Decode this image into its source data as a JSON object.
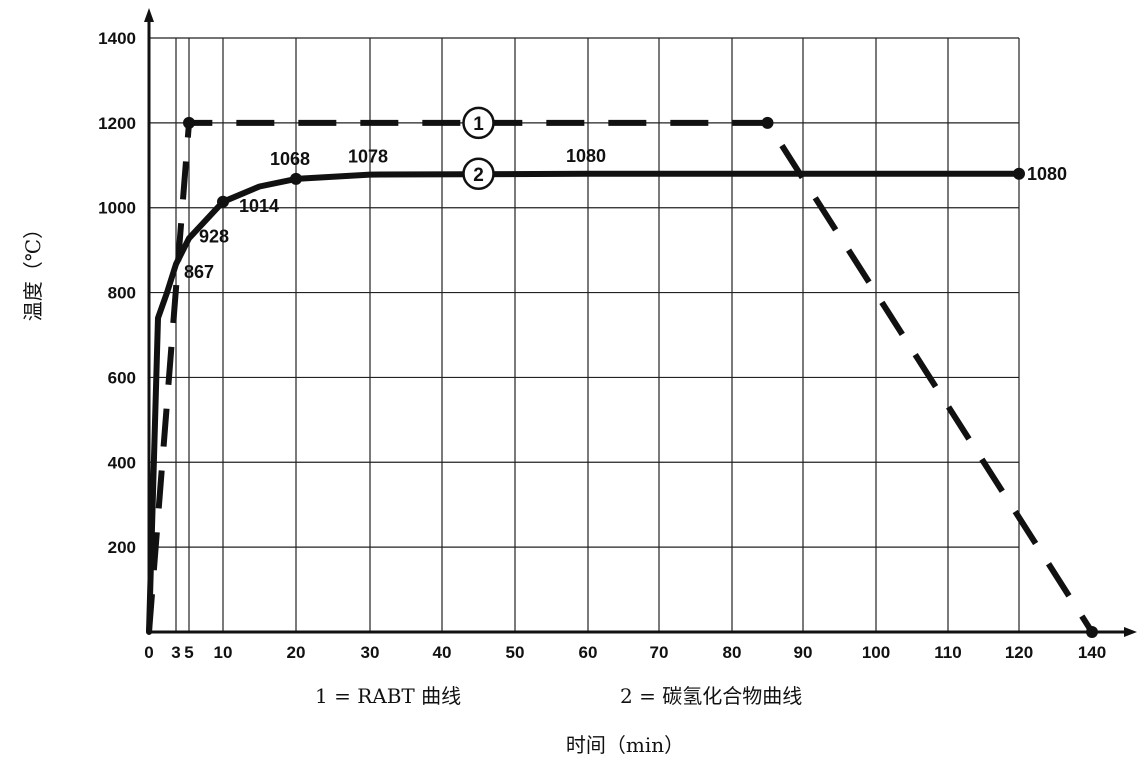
{
  "chart_data": {
    "type": "line",
    "ylabel": "温度（℃）",
    "xlabel": "时间（min）",
    "xlim": [
      0,
      140
    ],
    "ylim": [
      0,
      1400
    ],
    "grid": true,
    "x_ticks": [
      {
        "value": 0,
        "label": "0"
      },
      {
        "value": 3,
        "label": "3"
      },
      {
        "value": 5,
        "label": "5"
      },
      {
        "value": 10,
        "label": "10"
      },
      {
        "value": 20,
        "label": "20"
      },
      {
        "value": 30,
        "label": "30"
      },
      {
        "value": 40,
        "label": "40"
      },
      {
        "value": 50,
        "label": "50"
      },
      {
        "value": 60,
        "label": "60"
      },
      {
        "value": 70,
        "label": "70"
      },
      {
        "value": 80,
        "label": "80"
      },
      {
        "value": 90,
        "label": "90"
      },
      {
        "value": 100,
        "label": "100"
      },
      {
        "value": 110,
        "label": "110"
      },
      {
        "value": 120,
        "label": "120"
      },
      {
        "value": 140,
        "label": "140"
      }
    ],
    "y_ticks": [
      {
        "value": 200,
        "label": "200"
      },
      {
        "value": 400,
        "label": "400"
      },
      {
        "value": 600,
        "label": "600"
      },
      {
        "value": 800,
        "label": "800"
      },
      {
        "value": 1000,
        "label": "1000"
      },
      {
        "value": 1200,
        "label": "1200"
      },
      {
        "value": 1400,
        "label": "1400"
      }
    ],
    "series": [
      {
        "marker": "1",
        "style": "dashed",
        "color": "#111111",
        "points": [
          [
            0,
            0
          ],
          [
            5,
            1200
          ],
          [
            85,
            1200
          ],
          [
            140,
            0
          ]
        ]
      },
      {
        "marker": "2",
        "style": "solid",
        "color": "#111111",
        "points": [
          [
            0,
            0
          ],
          [
            1,
            740
          ],
          [
            2,
            800
          ],
          [
            3,
            867
          ],
          [
            5,
            928
          ],
          [
            10,
            1014
          ],
          [
            15,
            1050
          ],
          [
            20,
            1068
          ],
          [
            30,
            1078
          ],
          [
            60,
            1080
          ],
          [
            120,
            1080
          ]
        ]
      }
    ],
    "annotations": [
      {
        "x": 3,
        "y": 867,
        "text": "867"
      },
      {
        "x": 5,
        "y": 928,
        "text": "928"
      },
      {
        "x": 10,
        "y": 1014,
        "text": "1014"
      },
      {
        "x": 20,
        "y": 1068,
        "text": "1068"
      },
      {
        "x": 30,
        "y": 1078,
        "text": "1078"
      },
      {
        "x": 60,
        "y": 1080,
        "text": "1080"
      },
      {
        "x": 120,
        "y": 1080,
        "text": "1080"
      }
    ],
    "legend": [
      {
        "text": "1 = RABT 曲线"
      },
      {
        "text": "2 = 碳氢化合物曲线"
      }
    ]
  }
}
